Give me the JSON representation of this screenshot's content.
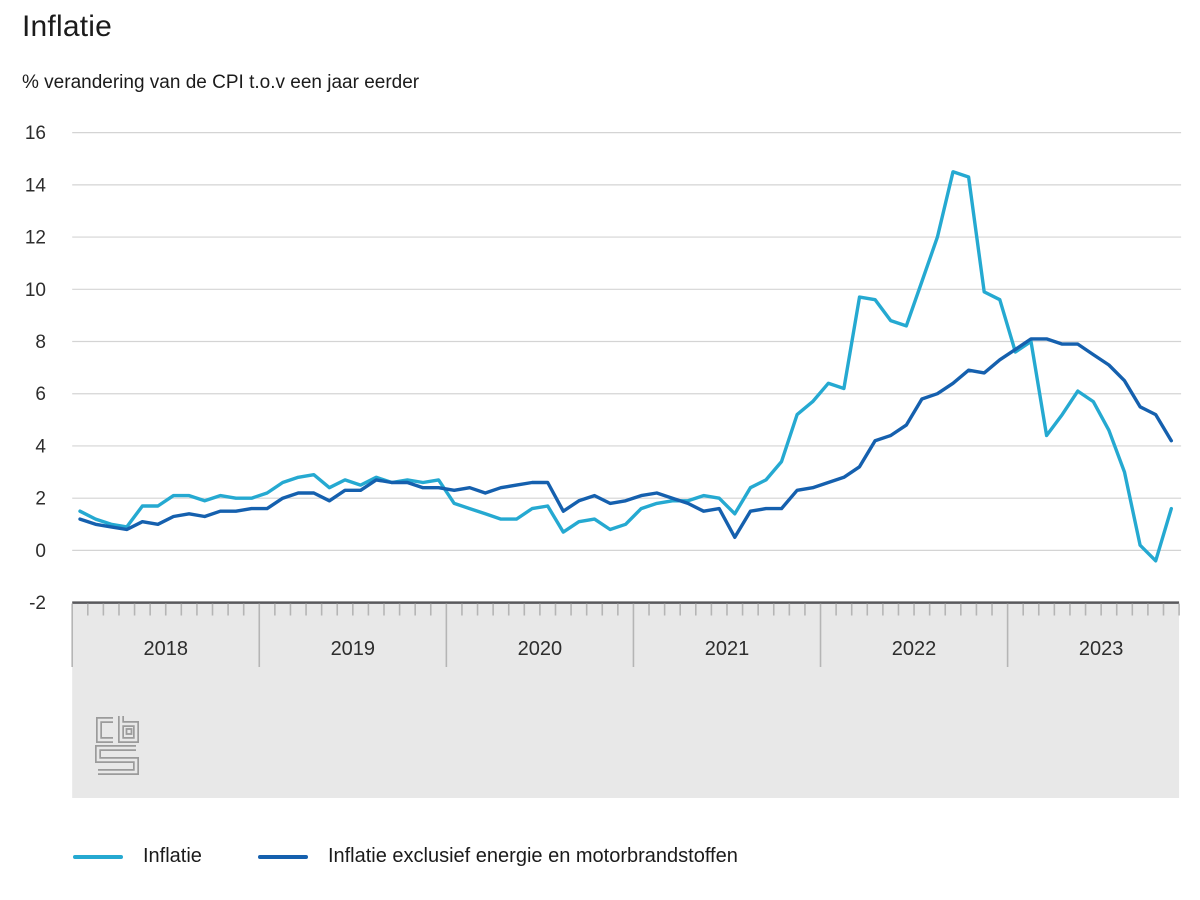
{
  "header": {
    "title": "Inflatie",
    "subtitle": "% verandering van de CPI t.o.v een jaar eerder"
  },
  "chart_data": {
    "type": "line",
    "title": "Inflatie",
    "subtitle": "% verandering van de CPI t.o.v een jaar eerder",
    "x_start": "2018-01",
    "x_end": "2023-11",
    "year_labels": [
      "2018",
      "2019",
      "2020",
      "2021",
      "2022",
      "2023"
    ],
    "y_ticks": [
      16,
      14,
      12,
      10,
      8,
      6,
      4,
      2,
      0,
      -2
    ],
    "ylim": [
      -2,
      16
    ],
    "grid": true,
    "legend_position": "bottom",
    "colors": {
      "grid": "#d4d4d4",
      "axis_band": "#e8e8e8",
      "axis_border": "#59595c",
      "tick": "#b5b5b5",
      "label": "#2d2d2d",
      "logo": "#9b9b9b"
    },
    "series": [
      {
        "name": "Inflatie",
        "color": "#25a9d1",
        "values": [
          1.5,
          1.2,
          1.0,
          0.9,
          1.7,
          1.7,
          2.1,
          2.1,
          1.9,
          2.1,
          2.0,
          2.0,
          2.2,
          2.6,
          2.8,
          2.9,
          2.4,
          2.7,
          2.5,
          2.8,
          2.6,
          2.7,
          2.6,
          2.7,
          1.8,
          1.6,
          1.4,
          1.2,
          1.2,
          1.6,
          1.7,
          0.7,
          1.1,
          1.2,
          0.8,
          1.0,
          1.6,
          1.8,
          1.9,
          1.9,
          2.1,
          2.0,
          1.4,
          2.4,
          2.7,
          3.4,
          5.2,
          5.7,
          6.4,
          6.2,
          9.7,
          9.6,
          8.8,
          8.6,
          10.3,
          12.0,
          14.5,
          14.3,
          9.9,
          9.6,
          7.6,
          8.0,
          4.4,
          5.2,
          6.1,
          5.7,
          4.6,
          3.0,
          0.2,
          -0.4,
          1.6
        ]
      },
      {
        "name": "Inflatie exclusief energie en motorbrandstoffen",
        "color": "#1560ae",
        "values": [
          1.2,
          1.0,
          0.9,
          0.8,
          1.1,
          1.0,
          1.3,
          1.4,
          1.3,
          1.5,
          1.5,
          1.6,
          1.6,
          2.0,
          2.2,
          2.2,
          1.9,
          2.3,
          2.3,
          2.7,
          2.6,
          2.6,
          2.4,
          2.4,
          2.3,
          2.4,
          2.2,
          2.4,
          2.5,
          2.6,
          2.6,
          1.5,
          1.9,
          2.1,
          1.8,
          1.9,
          2.1,
          2.2,
          2.0,
          1.8,
          1.5,
          1.6,
          0.5,
          1.5,
          1.6,
          1.6,
          2.3,
          2.4,
          2.6,
          2.8,
          3.2,
          4.2,
          4.4,
          4.8,
          5.8,
          6.0,
          6.4,
          6.9,
          6.8,
          7.3,
          7.7,
          8.1,
          8.1,
          7.9,
          7.9,
          7.5,
          7.1,
          6.5,
          5.5,
          5.2,
          4.2
        ]
      }
    ]
  },
  "footer": {
    "logo_name": "CBS"
  }
}
